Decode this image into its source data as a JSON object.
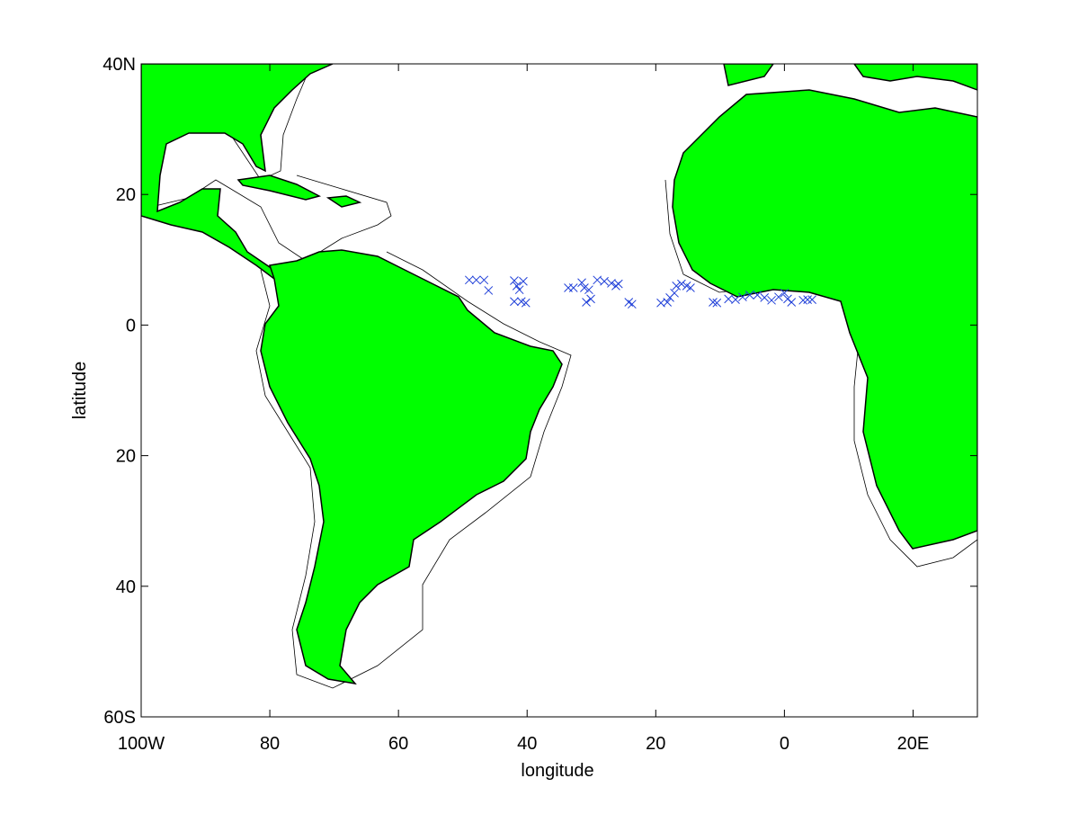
{
  "chart_data": {
    "type": "scatter",
    "xlabel": "longitude",
    "ylabel": "latitude",
    "xlim": [
      -100,
      30
    ],
    "ylim": [
      -60,
      40
    ],
    "xticks": [
      {
        "value": -100,
        "label": "100W"
      },
      {
        "value": -80,
        "label": "80"
      },
      {
        "value": -60,
        "label": "60"
      },
      {
        "value": -40,
        "label": "40"
      },
      {
        "value": -20,
        "label": "20"
      },
      0,
      {
        "value": 20,
        "label": "20E"
      }
    ],
    "yticks": [
      {
        "value": 40,
        "label": "40N"
      },
      {
        "value": 20,
        "label": "20"
      },
      0,
      {
        "value": -20,
        "label": "20"
      },
      {
        "value": -40,
        "label": "40"
      },
      {
        "value": -60,
        "label": "60S"
      }
    ],
    "color": "#1f3fd8",
    "x": [
      -49.0,
      -47.9,
      -46.7,
      -46.0,
      -42.0,
      -41.6,
      -41.2,
      -40.6,
      -42.0,
      -40.9,
      -40.2,
      -33.6,
      -32.8,
      -31.5,
      -31.1,
      -30.4,
      -30.8,
      -30.1,
      -29.1,
      -28.0,
      -26.9,
      -26.2,
      -25.8,
      -24.2,
      -23.7,
      -19.2,
      -18.2,
      -17.8,
      -17.1,
      -16.8,
      -16.0,
      -15.2,
      -14.6,
      -11.1,
      -10.5,
      -8.7,
      -7.6,
      -6.5,
      -5.4,
      -4.2,
      -3.1,
      -2.0,
      -0.9,
      0,
      0.5,
      1.1,
      2.9,
      3.6,
      4.3
    ],
    "values": [
      6.9,
      6.9,
      6.9,
      5.3,
      6.8,
      6.0,
      5.4,
      6.7,
      3.6,
      3.6,
      3.4,
      5.7,
      5.7,
      6.5,
      5.7,
      5.4,
      3.5,
      4.0,
      6.9,
      6.7,
      6.4,
      6.0,
      6.3,
      3.5,
      3.2,
      3.4,
      3.5,
      4.2,
      4.9,
      6.0,
      6.3,
      6.0,
      5.7,
      3.5,
      3.4,
      4.0,
      3.9,
      4.3,
      4.6,
      4.6,
      4.2,
      3.8,
      4.3,
      4.9,
      4.0,
      3.5,
      3.8,
      3.9,
      3.9
    ]
  }
}
